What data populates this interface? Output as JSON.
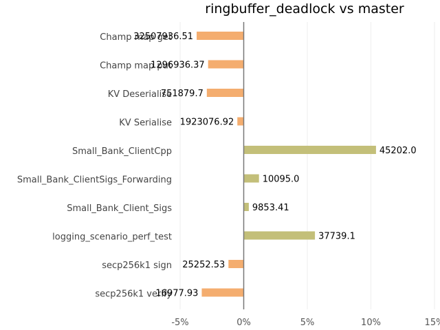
{
  "chart_data": {
    "type": "bar",
    "orientation": "horizontal",
    "title": "ringbuffer_deadlock vs master",
    "xlabel": "",
    "ylabel": "",
    "xlim": [
      -5,
      15
    ],
    "grid": true,
    "x_ticks": [
      -5,
      0,
      5,
      10,
      15
    ],
    "x_tick_labels": [
      "-5%",
      "0%",
      "5%",
      "10%",
      "15%"
    ],
    "categories": [
      "Champ map get",
      "Champ map put",
      "KV Deserialise",
      "KV Serialise",
      "Small_Bank_ClientCpp",
      "Small_Bank_ClientSigs_Forwarding",
      "Small_Bank_Client_Sigs",
      "logging_scenario_perf_test",
      "secp256k1 sign",
      "secp256k1 verify"
    ],
    "values": [
      -3.7,
      -2.8,
      -2.9,
      -0.5,
      10.4,
      1.2,
      0.4,
      5.6,
      -1.2,
      -3.3
    ],
    "data_labels": [
      "32507936.51",
      "1296936.37",
      "751879.7",
      "1923076.92",
      "45202.0",
      "10095.0",
      "9853.41",
      "37739.1",
      "25252.53",
      "16977.93"
    ],
    "colors": {
      "negative": "#f4ad6f",
      "positive": "#c3bf79"
    }
  }
}
